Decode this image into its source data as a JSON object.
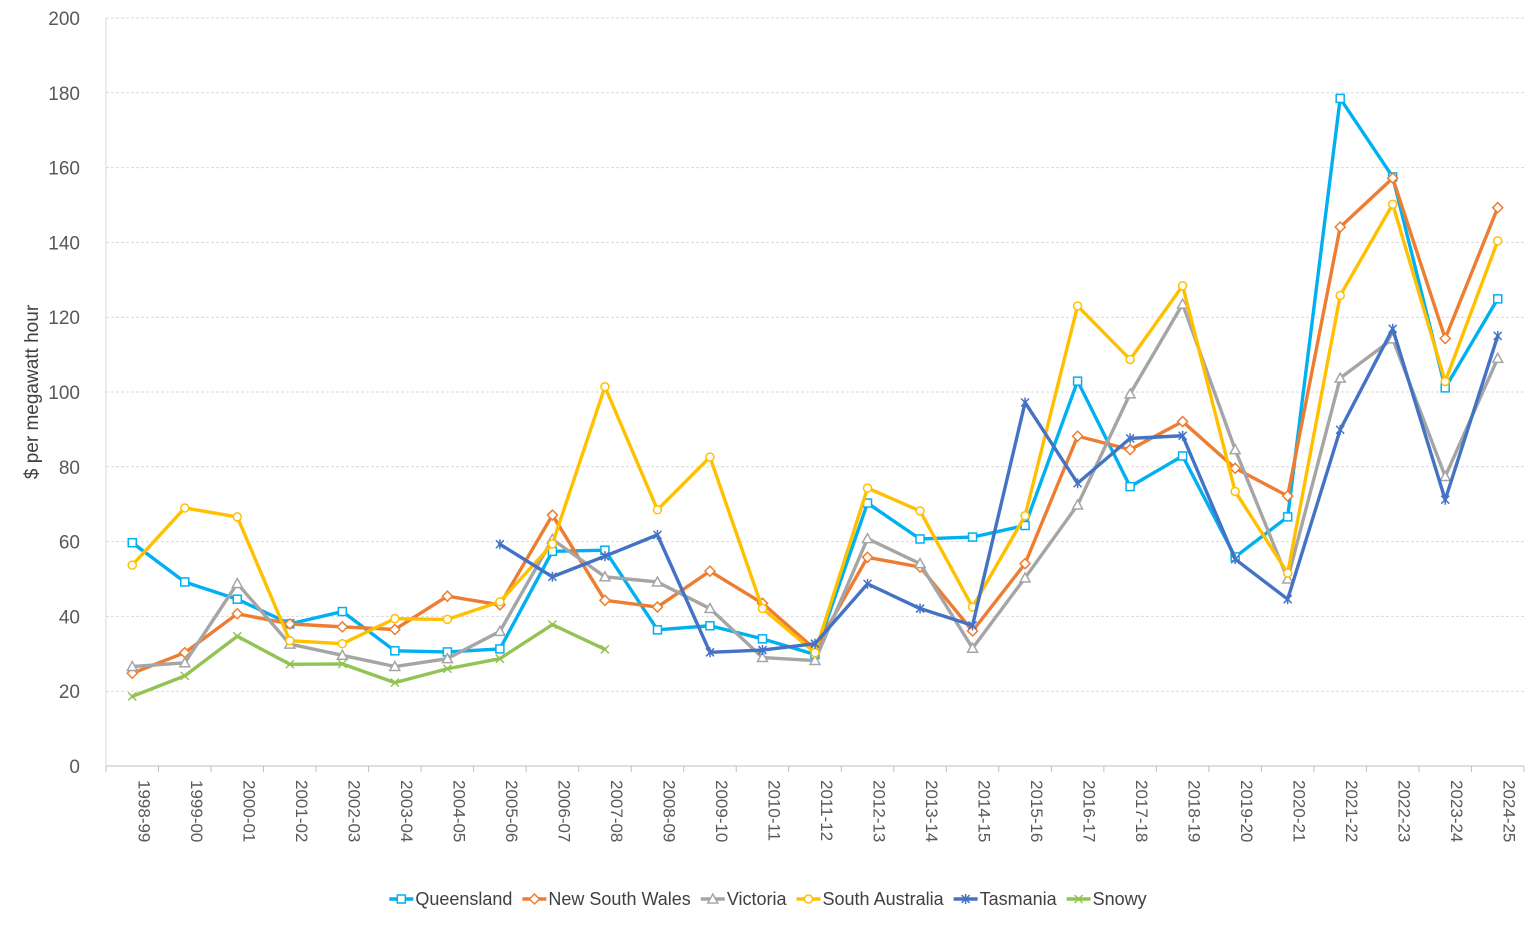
{
  "chart_data": {
    "type": "line",
    "title": "",
    "xlabel": "",
    "ylabel": "$ per megawatt hour",
    "ylim": [
      0,
      200
    ],
    "yticks": [
      "0",
      "20",
      "40",
      "60",
      "80",
      "100",
      "120",
      "140",
      "160",
      "180",
      "200"
    ],
    "grid": "horizontal",
    "legend_position": "bottom",
    "categories": [
      "1998-99",
      "1999-00",
      "2000-01",
      "2001-02",
      "2002-03",
      "2003-04",
      "2004-05",
      "2005-06",
      "2006-07",
      "2007-08",
      "2008-09",
      "2009-10",
      "2010-11",
      "2011-12",
      "2012-13",
      "2013-14",
      "2014-15",
      "2015-16",
      "2016-17",
      "2017-18",
      "2018-19",
      "2019-20",
      "2020-21",
      "2021-22",
      "2022-23",
      "2023-24",
      "2024-25"
    ],
    "series": [
      {
        "name": "Queensland",
        "color": "#00b0f0",
        "marker": "square",
        "values": [
          59.7,
          49.2,
          44.6,
          38.0,
          41.3,
          30.8,
          30.5,
          31.3,
          57.4,
          57.7,
          36.4,
          37.5,
          34.0,
          29.8,
          70.3,
          60.7,
          61.2,
          64.3,
          102.9,
          74.7,
          82.9,
          55.9,
          66.6,
          178.5,
          157.5,
          101.1,
          124.9
        ]
      },
      {
        "name": "New South Wales",
        "color": "#ed7d31",
        "marker": "diamond",
        "values": [
          24.8,
          30.3,
          40.7,
          38.0,
          37.2,
          36.5,
          45.4,
          43.1,
          67.1,
          44.3,
          42.5,
          52.1,
          43.5,
          31.2,
          55.8,
          53.2,
          36.1,
          54.1,
          88.2,
          84.6,
          92.1,
          79.6,
          72.2,
          144.1,
          157.2,
          114.3,
          149.3
        ]
      },
      {
        "name": "Victoria",
        "color": "#a5a5a5",
        "marker": "triangle",
        "values": [
          26.6,
          27.6,
          48.8,
          32.6,
          29.6,
          26.6,
          28.7,
          36.0,
          60.6,
          50.6,
          49.2,
          42.1,
          29.0,
          28.2,
          60.8,
          54.1,
          31.5,
          50.3,
          69.8,
          99.5,
          123.5,
          84.6,
          50.0,
          103.7,
          114.2,
          77.4,
          109.0
        ]
      },
      {
        "name": "South Australia",
        "color": "#ffc000",
        "marker": "circle",
        "values": [
          53.7,
          69.0,
          66.6,
          33.5,
          32.7,
          39.4,
          39.2,
          43.9,
          59.4,
          101.4,
          68.5,
          82.6,
          42.1,
          30.3,
          74.3,
          68.2,
          42.5,
          66.9,
          123.0,
          108.7,
          128.4,
          73.4,
          51.6,
          125.8,
          150.2,
          102.8,
          140.4
        ]
      },
      {
        "name": "Tasmania",
        "color": "#4472c4",
        "marker": "star",
        "values": [
          null,
          null,
          null,
          null,
          null,
          null,
          null,
          59.3,
          50.6,
          56.1,
          61.8,
          30.4,
          31.0,
          32.7,
          48.7,
          42.1,
          37.6,
          97.2,
          75.6,
          87.6,
          88.3,
          55.3,
          44.6,
          89.9,
          116.9,
          71.2,
          115.0
        ]
      },
      {
        "name": "Snowy",
        "color": "#92c353",
        "marker": "x",
        "values": [
          18.6,
          24.1,
          34.7,
          27.2,
          27.3,
          22.3,
          26.0,
          28.7,
          37.8,
          31.2,
          null,
          null,
          null,
          null,
          null,
          null,
          null,
          null,
          null,
          null,
          null,
          null,
          null,
          null,
          null,
          null,
          null
        ]
      }
    ]
  }
}
